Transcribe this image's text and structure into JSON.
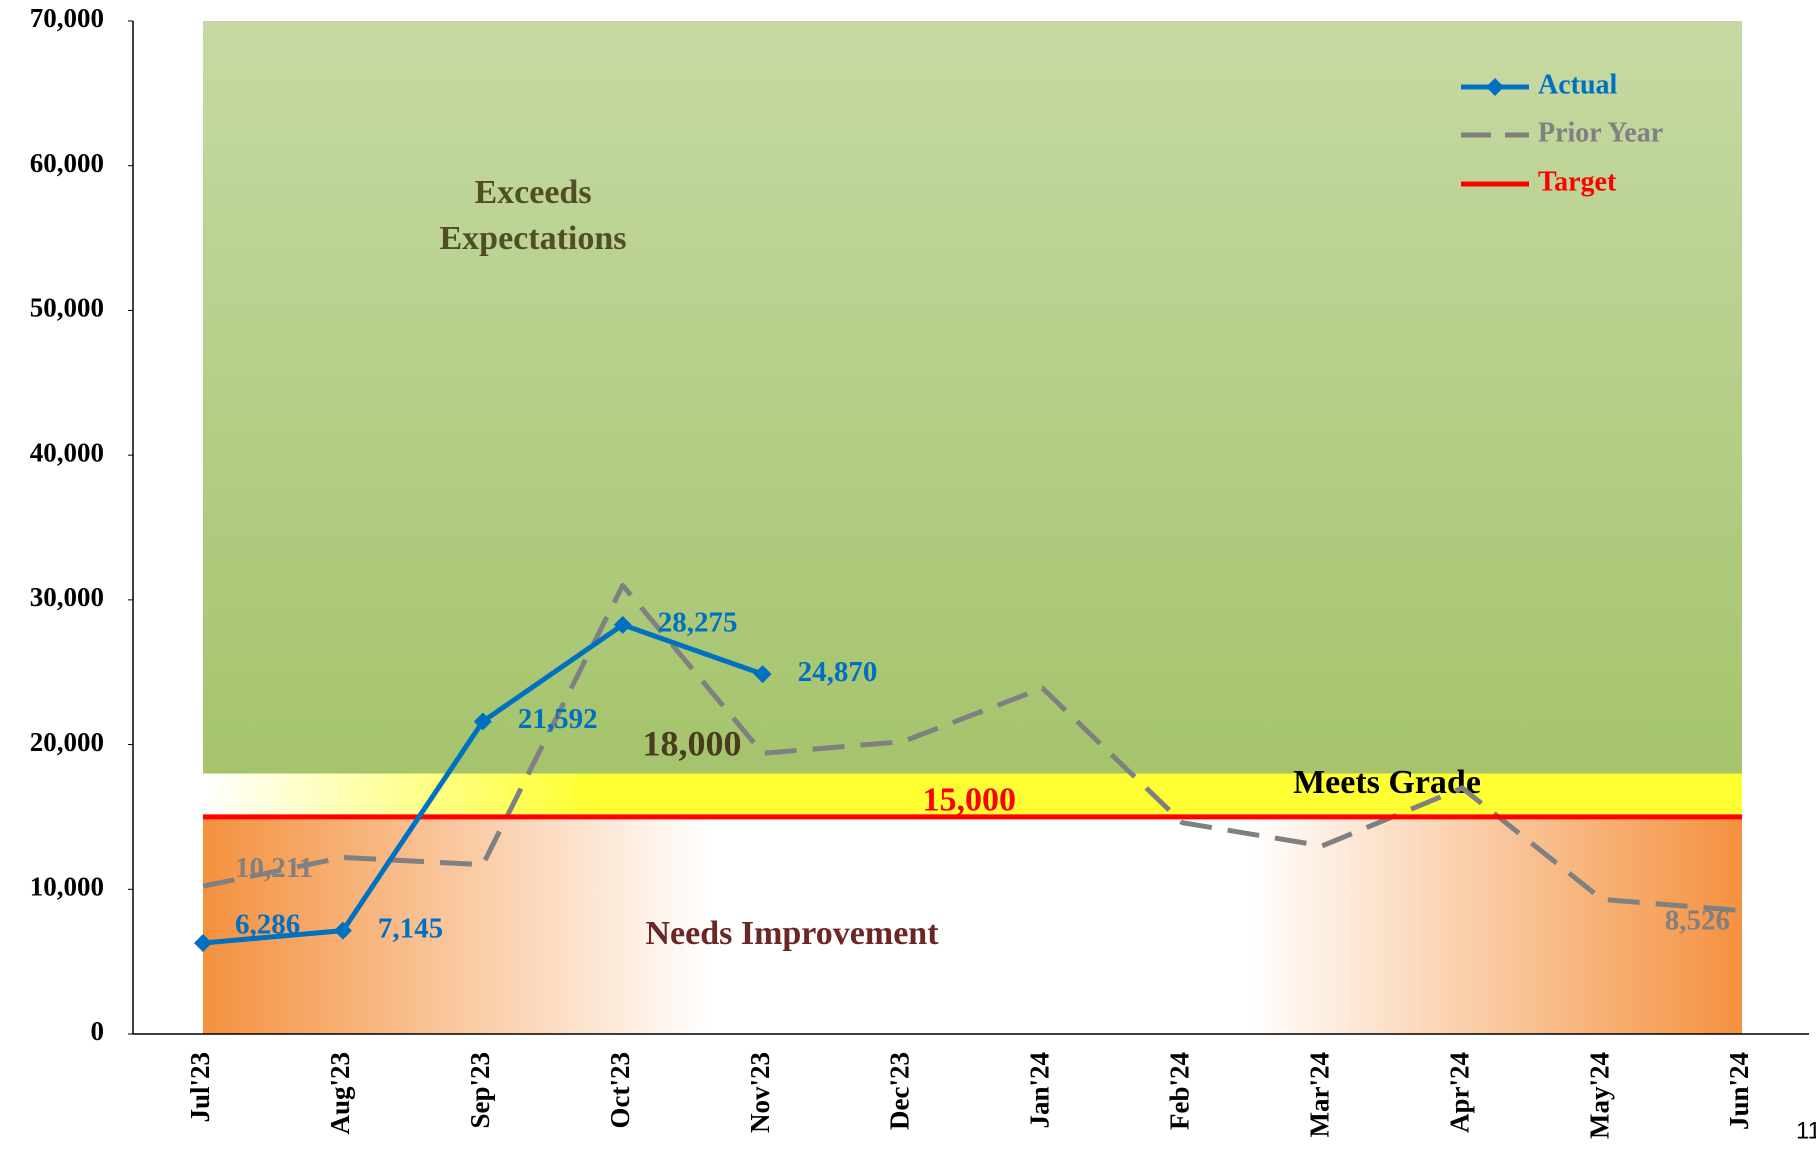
{
  "chart_data": {
    "type": "line",
    "categories": [
      "Jul'23",
      "Aug'23",
      "Sep'23",
      "Oct'23",
      "Nov'23",
      "Dec'23",
      "Jan'24",
      "Feb'24",
      "Mar'24",
      "Apr'24",
      "May'24",
      "Jun'24"
    ],
    "series": [
      {
        "name": "Actual",
        "color": "#0070c0",
        "values": [
          6286,
          7145,
          21592,
          28275,
          24870,
          null,
          null,
          null,
          null,
          null,
          null,
          null
        ],
        "value_labels": [
          "6,286",
          "7,145",
          "21,592",
          "28,275",
          "24,870",
          null,
          null,
          null,
          null,
          null,
          null,
          null
        ]
      },
      {
        "name": "Prior Year",
        "color": "#808080",
        "values": [
          10211,
          12200,
          11700,
          31000,
          19400,
          20200,
          23900,
          14600,
          13000,
          17000,
          9300,
          8526
        ],
        "value_labels": [
          "10,211",
          null,
          null,
          null,
          null,
          null,
          null,
          null,
          null,
          null,
          null,
          "8,526"
        ]
      },
      {
        "name": "Target",
        "color": "#ff0000",
        "values": [
          15000,
          15000,
          15000,
          15000,
          15000,
          15000,
          15000,
          15000,
          15000,
          15000,
          15000,
          15000
        ],
        "value_labels": [
          null,
          null,
          null,
          null,
          null,
          "15,000",
          null,
          null,
          null,
          null,
          null,
          null
        ]
      }
    ],
    "bands": [
      {
        "name": "Needs Improvement",
        "from": 0,
        "to": 15000
      },
      {
        "name": "Meets Grade",
        "from": 15000,
        "to": 18000
      },
      {
        "name": "Exceeds Expectations",
        "from": 18000,
        "to": 70000,
        "from_label": "18,000"
      }
    ],
    "ylim": [
      0,
      70000
    ],
    "yticks": [
      0,
      {
        "value": 10000,
        "label": "10,000"
      },
      {
        "value": 20000,
        "label": "20,000"
      },
      {
        "value": 30000,
        "label": "30,000"
      },
      {
        "value": 40000,
        "label": "40,000"
      },
      {
        "value": 50000,
        "label": "50,000"
      },
      {
        "value": 60000,
        "label": "60,000"
      },
      {
        "value": 70000,
        "label": "70,000"
      }
    ],
    "legend": "top-right",
    "page_number": "11"
  }
}
